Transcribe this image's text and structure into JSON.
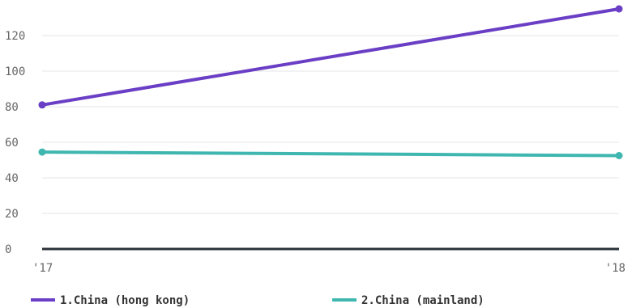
{
  "chart_data": {
    "type": "line",
    "title": "",
    "xlabel": "",
    "ylabel": "",
    "categories": [
      "'17",
      "'18"
    ],
    "ylim": [
      0,
      140
    ],
    "y_ticks": [
      0,
      20,
      40,
      60,
      80,
      100,
      120
    ],
    "grid": true,
    "legend_position": "bottom",
    "series": [
      {
        "name": "1.China (hong kong)",
        "color": "#6a3ec5",
        "values": [
          81,
          135
        ]
      },
      {
        "name": "2.China (mainland)",
        "color": "#3fb7b0",
        "values": [
          54.5,
          52.5
        ]
      }
    ]
  }
}
